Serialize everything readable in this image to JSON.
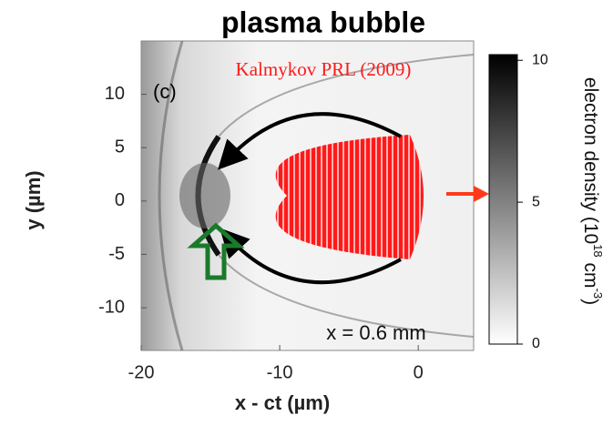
{
  "chart_data": {
    "type": "image",
    "title": "plasma bubble",
    "panel_label": "(c)",
    "citation": "Kalmykov PRL (2009)",
    "annotation": "x = 0.6 mm",
    "x_label": "x - ct (µm)",
    "y_label": "y (µm)",
    "xlim": [
      -20,
      4
    ],
    "xticks": [
      -20,
      -10,
      0
    ],
    "ylim": [
      -14,
      15
    ],
    "yticks": [
      -10,
      -5,
      0,
      5,
      10
    ],
    "colorbar": {
      "label_parts": [
        "electron density (10",
        "18",
        " cm",
        "-3",
        ")"
      ],
      "lim": [
        0,
        10.2
      ],
      "ticks": [
        0,
        5,
        10
      ],
      "colors": [
        "#ffffff",
        "#000000"
      ]
    }
  }
}
